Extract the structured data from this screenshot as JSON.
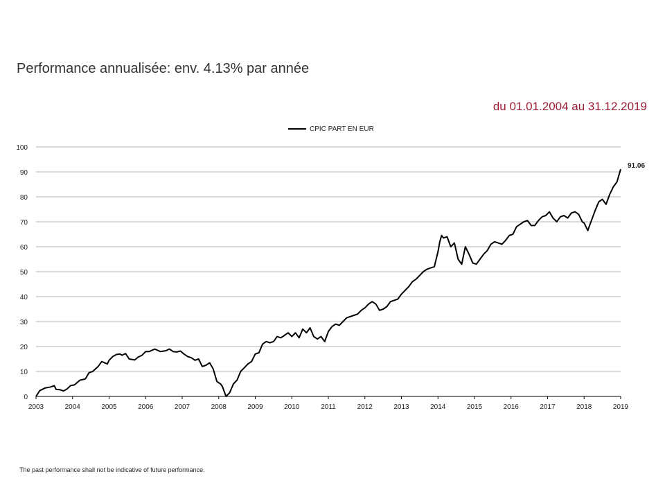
{
  "header": {
    "title": "Performance annualisée: env. 4.13% par année",
    "period": "du 01.01.2004 au 31.12.2019"
  },
  "footer": {
    "disclaimer": "The past performance shall not be indicative of future performance."
  },
  "colors": {
    "series": "#000000",
    "grid": "#b3b3b3",
    "period_text": "#9b1c33"
  },
  "chart_data": {
    "type": "line",
    "title": "",
    "xlabel": "",
    "ylabel": "",
    "xlim": [
      2003,
      2019
    ],
    "ylim": [
      0,
      100
    ],
    "x_ticks": [
      "2003",
      "2004",
      "2005",
      "2006",
      "2007",
      "2008",
      "2009",
      "2010",
      "2011",
      "2012",
      "2013",
      "2014",
      "2015",
      "2016",
      "2017",
      "2018",
      "2019"
    ],
    "y_ticks": [
      "0",
      "10",
      "20",
      "30",
      "40",
      "50",
      "60",
      "70",
      "80",
      "90",
      "100"
    ],
    "grid": "horizontal",
    "legend_position": "top-center",
    "end_label": "91.06",
    "series": [
      {
        "name": "CPIC PART EN EUR",
        "x": [
          2003.0,
          2003.1,
          2003.25,
          2003.4,
          2003.5,
          2003.55,
          2003.65,
          2003.75,
          2003.85,
          2003.95,
          2004.05,
          2004.2,
          2004.35,
          2004.45,
          2004.55,
          2004.7,
          2004.8,
          2004.95,
          2005.0,
          2005.1,
          2005.2,
          2005.3,
          2005.35,
          2005.45,
          2005.55,
          2005.7,
          2005.8,
          2005.9,
          2006.0,
          2006.1,
          2006.25,
          2006.4,
          2006.55,
          2006.65,
          2006.75,
          2006.85,
          2006.95,
          2007.05,
          2007.15,
          2007.25,
          2007.35,
          2007.45,
          2007.55,
          2007.65,
          2007.75,
          2007.85,
          2007.95,
          2008.05,
          2008.1,
          2008.2,
          2008.3,
          2008.4,
          2008.5,
          2008.6,
          2008.7,
          2008.8,
          2008.9,
          2009.0,
          2009.1,
          2009.2,
          2009.3,
          2009.4,
          2009.5,
          2009.6,
          2009.7,
          2009.8,
          2009.9,
          2010.0,
          2010.1,
          2010.2,
          2010.3,
          2010.4,
          2010.5,
          2010.6,
          2010.7,
          2010.8,
          2010.9,
          2011.0,
          2011.1,
          2011.2,
          2011.3,
          2011.4,
          2011.5,
          2011.6,
          2011.7,
          2011.8,
          2011.9,
          2012.0,
          2012.1,
          2012.2,
          2012.3,
          2012.4,
          2012.5,
          2012.6,
          2012.7,
          2012.8,
          2012.9,
          2013.0,
          2013.1,
          2013.2,
          2013.3,
          2013.4,
          2013.5,
          2013.6,
          2013.7,
          2013.8,
          2013.9,
          2014.0,
          2014.05,
          2014.1,
          2014.15,
          2014.25,
          2014.35,
          2014.45,
          2014.55,
          2014.65,
          2014.75,
          2014.85,
          2014.95,
          2015.05,
          2015.15,
          2015.25,
          2015.35,
          2015.45,
          2015.55,
          2015.65,
          2015.75,
          2015.85,
          2015.95,
          2016.05,
          2016.15,
          2016.25,
          2016.35,
          2016.45,
          2016.55,
          2016.65,
          2016.75,
          2016.85,
          2016.95,
          2017.05,
          2017.15,
          2017.25,
          2017.35,
          2017.45,
          2017.55,
          2017.65,
          2017.75,
          2017.85,
          2017.95,
          2018.0,
          2018.1,
          2018.2,
          2018.3,
          2018.4,
          2018.5,
          2018.6,
          2018.7,
          2018.8,
          2018.9,
          2019.0
        ],
        "values": [
          0,
          2.3,
          3.4,
          3.8,
          4.3,
          2.8,
          2.7,
          2.2,
          3.0,
          4.4,
          4.6,
          6.5,
          7.0,
          9.5,
          10.0,
          12.0,
          14.0,
          13.0,
          14.5,
          16.0,
          16.8,
          17.0,
          16.5,
          17.2,
          15.0,
          14.6,
          15.8,
          16.5,
          18.0,
          18.0,
          19.0,
          18.0,
          18.3,
          19.0,
          18.0,
          17.8,
          18.2,
          17.0,
          16.0,
          15.5,
          14.5,
          15.0,
          12.0,
          12.5,
          13.5,
          11.0,
          6.0,
          5.0,
          4.0,
          0.0,
          1.5,
          5.0,
          6.5,
          10.0,
          11.5,
          13.0,
          14.0,
          17.0,
          17.5,
          21.0,
          22.0,
          21.5,
          22.0,
          24.0,
          23.5,
          24.5,
          25.5,
          24.0,
          25.5,
          23.5,
          27.0,
          25.5,
          27.5,
          24.0,
          23.0,
          24.0,
          22.0,
          26.0,
          28.0,
          29.0,
          28.5,
          30.0,
          31.5,
          32.0,
          32.5,
          33.0,
          34.5,
          35.5,
          37.0,
          38.0,
          37.0,
          34.5,
          35.0,
          36.0,
          38.0,
          38.5,
          39.0,
          41.0,
          42.5,
          44.0,
          46.0,
          47.0,
          48.5,
          50.0,
          51.0,
          51.5,
          52.0,
          58.0,
          62.0,
          64.5,
          63.5,
          64.0,
          60.0,
          61.5,
          55.0,
          53.0,
          60.0,
          57.0,
          53.5,
          53.0,
          55.0,
          57.0,
          58.5,
          61.0,
          62.0,
          61.5,
          61.0,
          62.5,
          64.5,
          65.0,
          68.0,
          69.0,
          70.0,
          70.5,
          68.5,
          68.5,
          70.5,
          72.0,
          72.5,
          74.0,
          71.5,
          70.0,
          72.0,
          72.5,
          71.5,
          73.5,
          74.0,
          73.0,
          70.0,
          69.5,
          66.5,
          70.5,
          74.5,
          78.0,
          79.0,
          77.0,
          81.0,
          84.0,
          86.0,
          91.06
        ]
      }
    ]
  }
}
